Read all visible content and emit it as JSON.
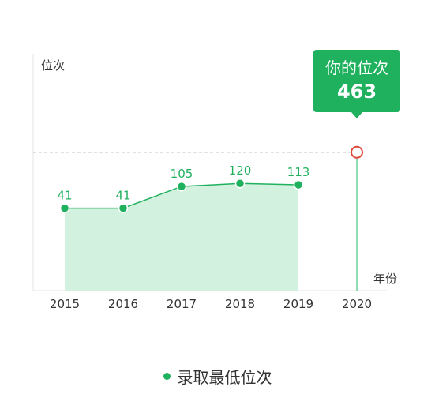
{
  "chart_data": {
    "type": "area",
    "ylabel": "位次",
    "xlabel": "年份",
    "categories": [
      "2015",
      "2016",
      "2017",
      "2018",
      "2019",
      "2020"
    ],
    "series": [
      {
        "name": "录取最低位次",
        "values": [
          41,
          41,
          105,
          120,
          113,
          null
        ]
      }
    ],
    "highlight": {
      "category": "2020",
      "title": "你的位次",
      "value": 463
    },
    "colors": {
      "line": "#20b15f",
      "fill": "#d3f1df",
      "marker": "#20b15f",
      "highlight_box": "#20b15f",
      "highlight_marker": "#e0473a",
      "highlight_line": "#6fd19b",
      "reference_line": "#888888",
      "axis": "#e5e5e5"
    },
    "legend": {
      "position": "bottom",
      "label": "录取最低位次"
    }
  }
}
